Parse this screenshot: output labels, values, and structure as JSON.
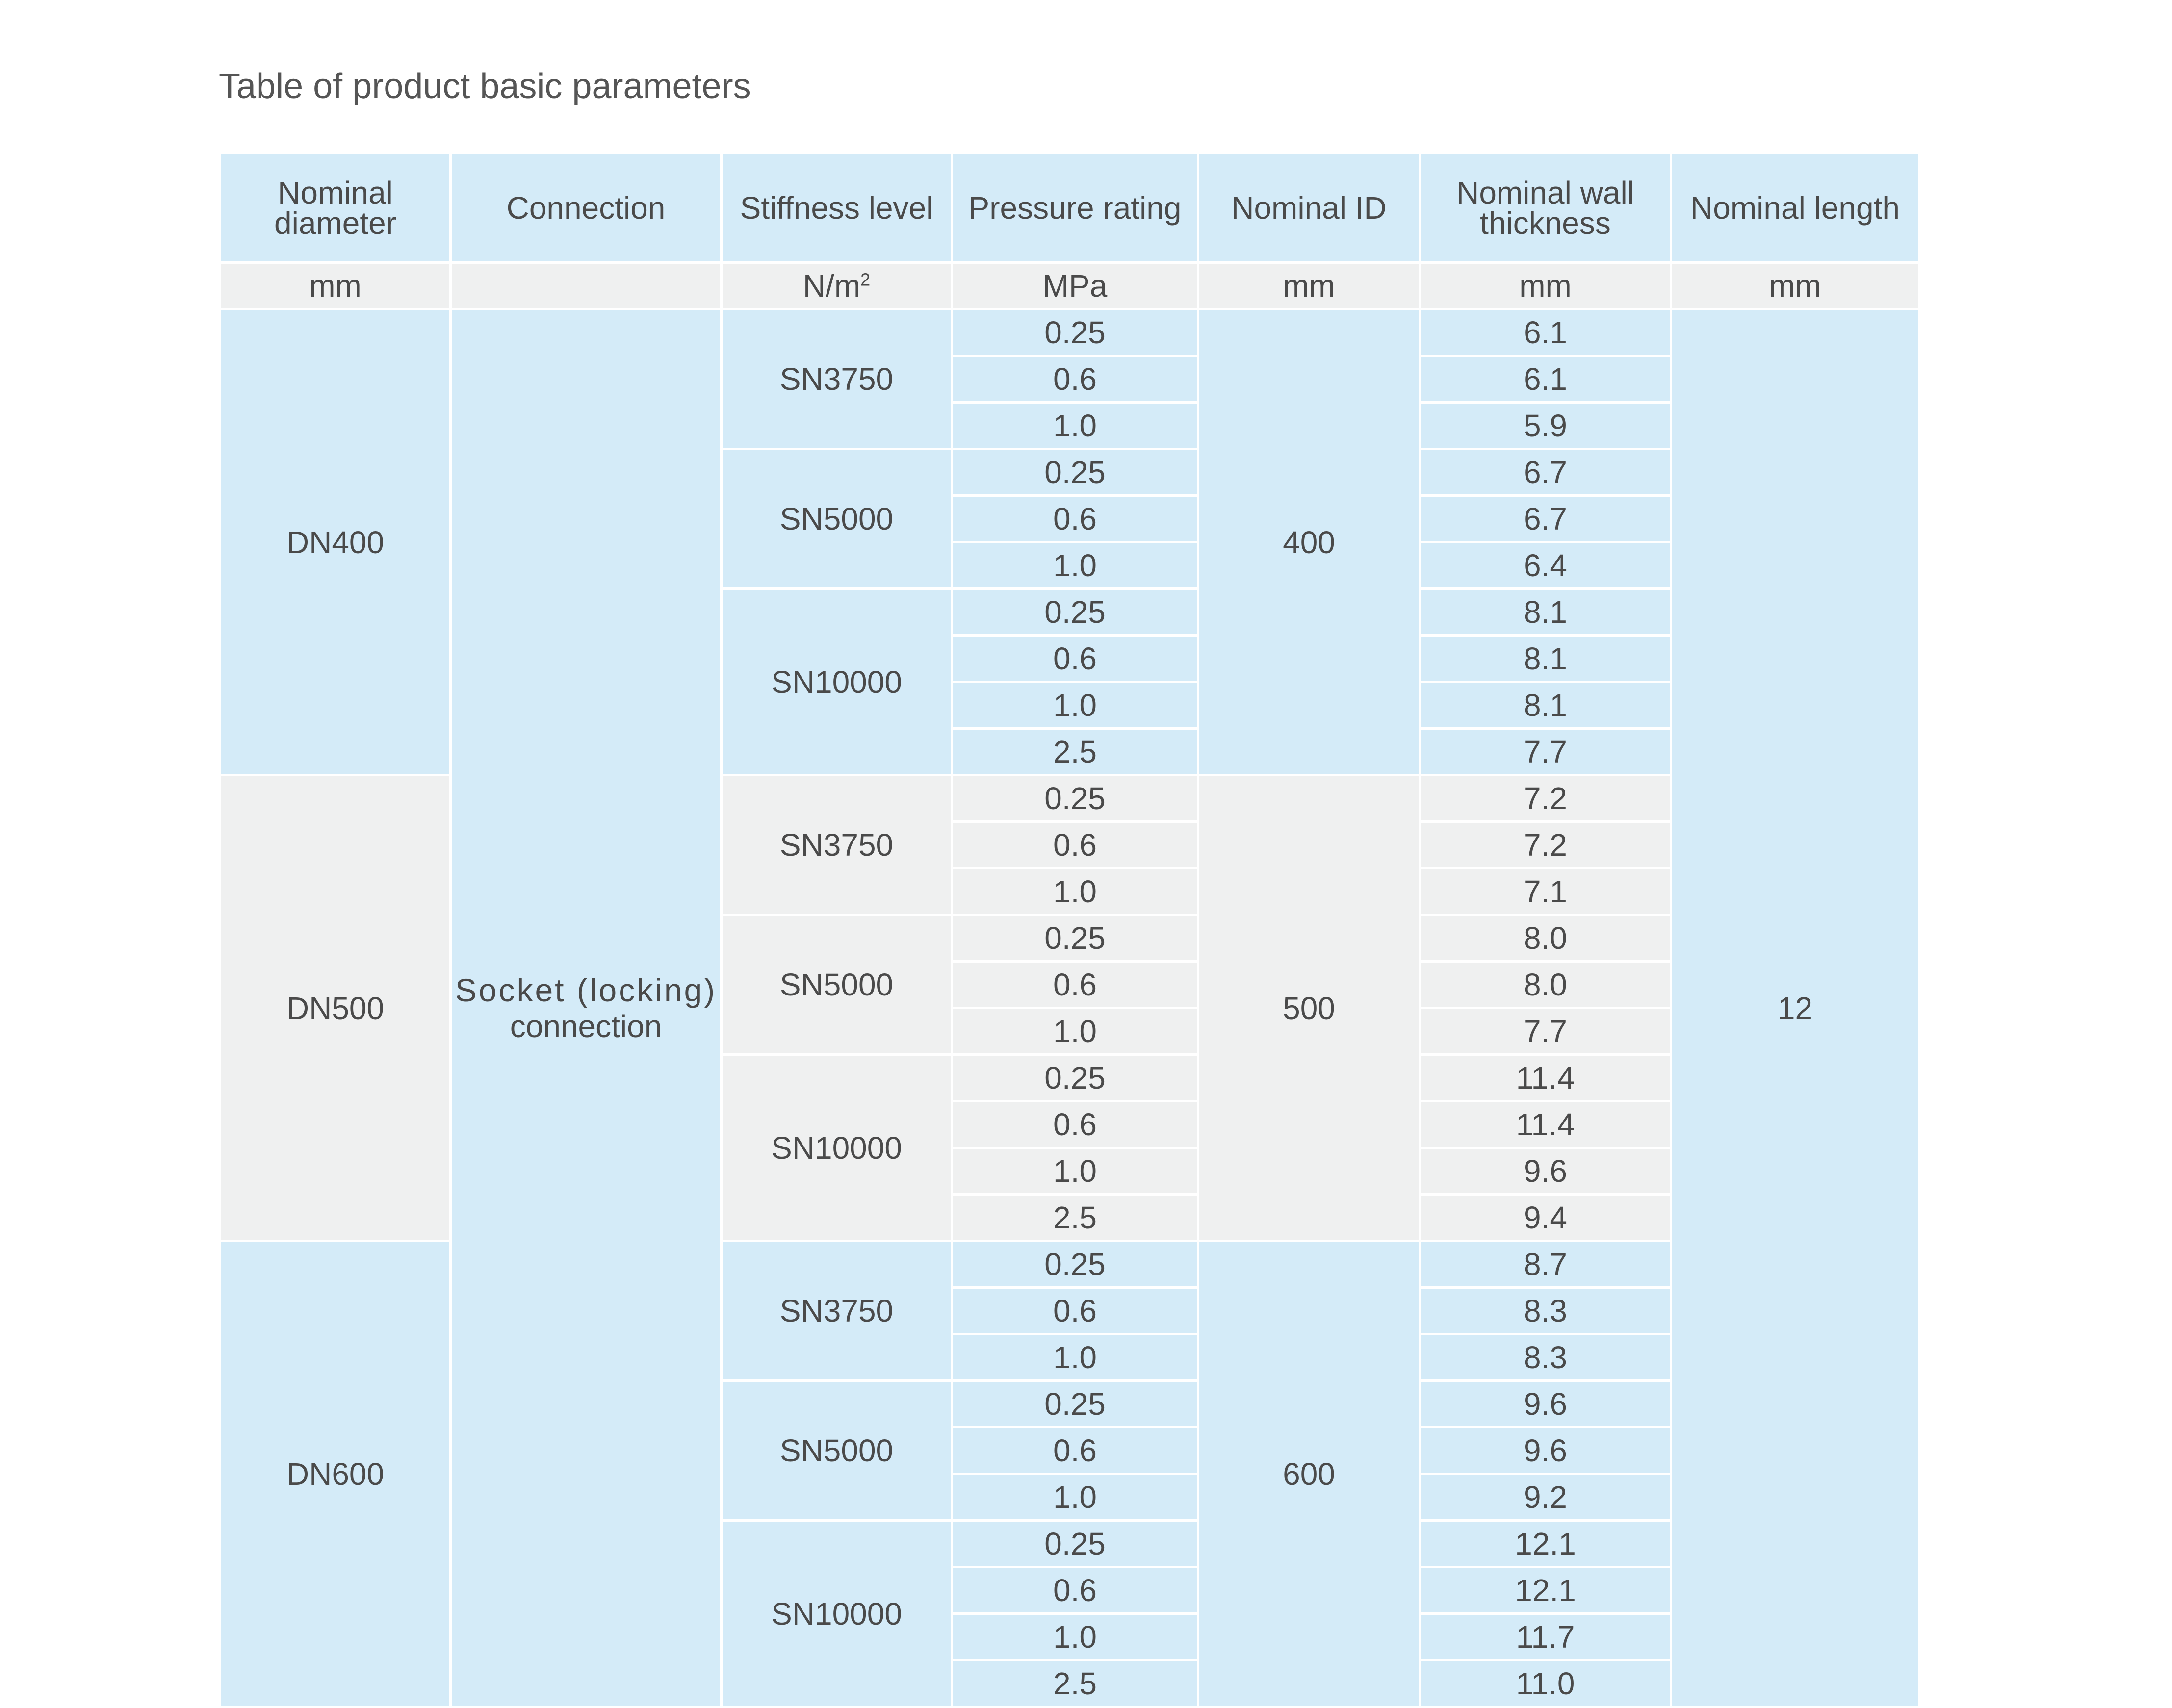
{
  "title": "Table of product basic parameters",
  "headers": {
    "nominal_diameter": "Nominal diameter",
    "connection": "Connection",
    "stiffness_level": "Stiffness level",
    "pressure_rating": "Pressure rating",
    "nominal_id": "Nominal ID",
    "nominal_wall_thickness": "Nominal wall thickness",
    "nominal_length": "Nominal length"
  },
  "units": {
    "nominal_diameter": "mm",
    "connection": "",
    "stiffness_level": "N/m",
    "stiffness_level_sup": "2",
    "pressure_rating": "MPa",
    "nominal_id": "mm",
    "nominal_wall_thickness": "mm",
    "nominal_length": "mm"
  },
  "connection": {
    "line1": "Socket (locking)",
    "line2": "connection"
  },
  "nominal_length": "12",
  "groups": [
    {
      "dn": "DN400",
      "id": "400",
      "stiffness": [
        {
          "level": "SN3750",
          "rows": [
            {
              "pressure": "0.25",
              "wall": "6.1"
            },
            {
              "pressure": "0.6",
              "wall": "6.1"
            },
            {
              "pressure": "1.0",
              "wall": "5.9"
            }
          ]
        },
        {
          "level": "SN5000",
          "rows": [
            {
              "pressure": "0.25",
              "wall": "6.7"
            },
            {
              "pressure": "0.6",
              "wall": "6.7"
            },
            {
              "pressure": "1.0",
              "wall": "6.4"
            }
          ]
        },
        {
          "level": "SN10000",
          "rows": [
            {
              "pressure": "0.25",
              "wall": "8.1"
            },
            {
              "pressure": "0.6",
              "wall": "8.1"
            },
            {
              "pressure": "1.0",
              "wall": "8.1"
            },
            {
              "pressure": "2.5",
              "wall": "7.7"
            }
          ]
        }
      ]
    },
    {
      "dn": "DN500",
      "id": "500",
      "stiffness": [
        {
          "level": "SN3750",
          "rows": [
            {
              "pressure": "0.25",
              "wall": "7.2"
            },
            {
              "pressure": "0.6",
              "wall": "7.2"
            },
            {
              "pressure": "1.0",
              "wall": "7.1"
            }
          ]
        },
        {
          "level": "SN5000",
          "rows": [
            {
              "pressure": "0.25",
              "wall": "8.0"
            },
            {
              "pressure": "0.6",
              "wall": "8.0"
            },
            {
              "pressure": "1.0",
              "wall": "7.7"
            }
          ]
        },
        {
          "level": "SN10000",
          "rows": [
            {
              "pressure": "0.25",
              "wall": "11.4"
            },
            {
              "pressure": "0.6",
              "wall": "11.4"
            },
            {
              "pressure": "1.0",
              "wall": "9.6"
            },
            {
              "pressure": "2.5",
              "wall": "9.4"
            }
          ]
        }
      ]
    },
    {
      "dn": "DN600",
      "id": "600",
      "stiffness": [
        {
          "level": "SN3750",
          "rows": [
            {
              "pressure": "0.25",
              "wall": "8.7"
            },
            {
              "pressure": "0.6",
              "wall": "8.3"
            },
            {
              "pressure": "1.0",
              "wall": "8.3"
            }
          ]
        },
        {
          "level": "SN5000",
          "rows": [
            {
              "pressure": "0.25",
              "wall": "9.6"
            },
            {
              "pressure": "0.6",
              "wall": "9.6"
            },
            {
              "pressure": "1.0",
              "wall": "9.2"
            }
          ]
        },
        {
          "level": "SN10000",
          "rows": [
            {
              "pressure": "0.25",
              "wall": "12.1"
            },
            {
              "pressure": "0.6",
              "wall": "12.1"
            },
            {
              "pressure": "1.0",
              "wall": "11.7"
            },
            {
              "pressure": "2.5",
              "wall": "11.0"
            }
          ]
        }
      ]
    }
  ]
}
